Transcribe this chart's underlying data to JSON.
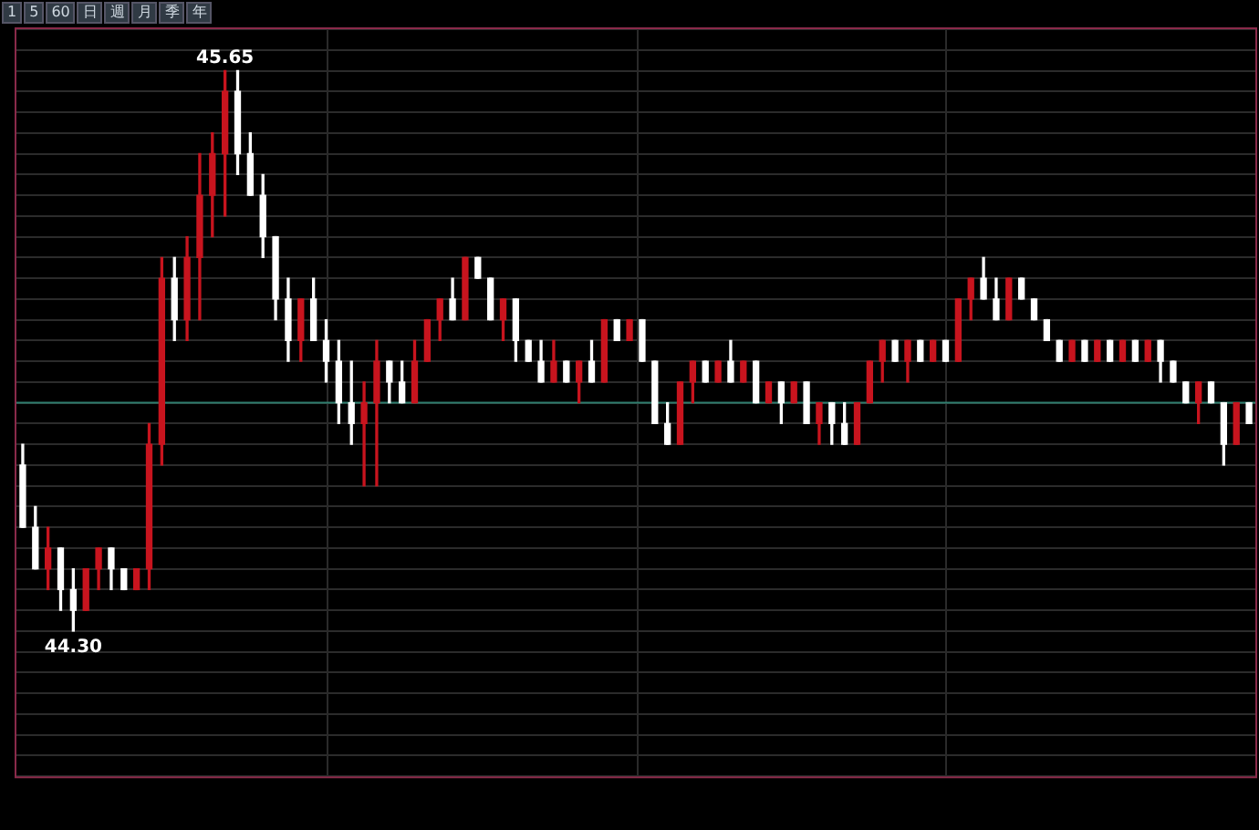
{
  "chart_data": {
    "type": "candlestick",
    "relative": false,
    "categories": [
      null,
      null,
      null,
      null,
      null,
      null,
      null,
      null,
      null,
      null,
      null,
      null,
      null,
      null,
      null,
      null,
      null,
      null,
      null,
      null,
      null,
      null,
      null,
      null,
      null,
      null,
      null,
      null,
      null,
      null,
      null,
      null,
      null,
      null,
      null,
      null,
      null,
      null,
      null,
      null,
      null,
      null,
      null,
      null,
      null,
      null,
      null,
      null,
      null,
      null,
      null,
      null,
      null,
      null,
      null,
      null,
      null,
      null,
      null,
      null,
      null,
      null,
      null,
      null,
      null,
      null,
      null,
      null,
      null,
      null,
      null,
      null,
      null,
      null,
      null,
      null,
      null,
      null,
      null,
      null,
      null,
      null,
      null,
      null,
      null,
      null,
      null,
      null,
      null,
      null,
      null,
      null,
      null,
      null,
      null,
      null,
      null,
      null
    ],
    "ohlc": [
      [
        44.7,
        44.75,
        44.55,
        44.55
      ],
      [
        44.55,
        44.6,
        44.45,
        44.45
      ],
      [
        44.45,
        44.55,
        44.4,
        44.5
      ],
      [
        44.5,
        44.5,
        44.35,
        44.4
      ],
      [
        44.4,
        44.45,
        44.3,
        44.35
      ],
      [
        44.35,
        44.45,
        44.35,
        44.45
      ],
      [
        44.45,
        44.5,
        44.4,
        44.5
      ],
      [
        44.5,
        44.5,
        44.4,
        44.45
      ],
      [
        44.45,
        44.45,
        44.4,
        44.4
      ],
      [
        44.4,
        44.45,
        44.4,
        44.45
      ],
      [
        44.45,
        44.8,
        44.4,
        44.75
      ],
      [
        44.75,
        45.2,
        44.7,
        45.15
      ],
      [
        45.15,
        45.2,
        45.0,
        45.05
      ],
      [
        45.05,
        45.25,
        45.0,
        45.2
      ],
      [
        45.2,
        45.45,
        45.05,
        45.35
      ],
      [
        45.35,
        45.5,
        45.25,
        45.45
      ],
      [
        45.45,
        45.65,
        45.3,
        45.6
      ],
      [
        45.6,
        45.65,
        45.4,
        45.45
      ],
      [
        45.45,
        45.5,
        45.35,
        45.35
      ],
      [
        45.35,
        45.4,
        45.2,
        45.25
      ],
      [
        45.25,
        45.25,
        45.05,
        45.1
      ],
      [
        45.1,
        45.15,
        44.95,
        45.0
      ],
      [
        45.0,
        45.1,
        44.95,
        45.1
      ],
      [
        45.1,
        45.15,
        45.0,
        45.0
      ],
      [
        45.0,
        45.05,
        44.9,
        44.95
      ],
      [
        44.95,
        45.0,
        44.8,
        44.85
      ],
      [
        44.85,
        44.95,
        44.75,
        44.8
      ],
      [
        44.8,
        44.9,
        44.65,
        44.85
      ],
      [
        44.85,
        45.0,
        44.65,
        44.95
      ],
      [
        44.95,
        44.95,
        44.85,
        44.9
      ],
      [
        44.9,
        44.95,
        44.85,
        44.85
      ],
      [
        44.85,
        45.0,
        44.85,
        44.95
      ],
      [
        44.95,
        45.05,
        44.95,
        45.05
      ],
      [
        45.05,
        45.1,
        45.0,
        45.1
      ],
      [
        45.1,
        45.15,
        45.05,
        45.05
      ],
      [
        45.05,
        45.2,
        45.05,
        45.2
      ],
      [
        45.2,
        45.2,
        45.15,
        45.15
      ],
      [
        45.15,
        45.15,
        45.05,
        45.05
      ],
      [
        45.05,
        45.1,
        45.0,
        45.1
      ],
      [
        45.1,
        45.1,
        44.95,
        45.0
      ],
      [
        45.0,
        45.0,
        44.95,
        44.95
      ],
      [
        44.95,
        45.0,
        44.9,
        44.9
      ],
      [
        44.9,
        45.0,
        44.9,
        44.95
      ],
      [
        44.95,
        44.95,
        44.9,
        44.9
      ],
      [
        44.9,
        44.95,
        44.85,
        44.95
      ],
      [
        44.95,
        45.0,
        44.9,
        44.9
      ],
      [
        44.9,
        45.05,
        44.9,
        45.05
      ],
      [
        45.05,
        45.05,
        45.0,
        45.0
      ],
      [
        45.0,
        45.05,
        45.0,
        45.05
      ],
      [
        45.05,
        45.05,
        44.95,
        44.95
      ],
      [
        44.95,
        44.95,
        44.8,
        44.8
      ],
      [
        44.8,
        44.85,
        44.75,
        44.75
      ],
      [
        44.75,
        44.9,
        44.75,
        44.9
      ],
      [
        44.9,
        44.95,
        44.85,
        44.95
      ],
      [
        44.95,
        44.95,
        44.9,
        44.9
      ],
      [
        44.9,
        44.95,
        44.9,
        44.95
      ],
      [
        44.95,
        45.0,
        44.9,
        44.9
      ],
      [
        44.9,
        44.95,
        44.9,
        44.95
      ],
      [
        44.95,
        44.95,
        44.85,
        44.85
      ],
      [
        44.85,
        44.9,
        44.85,
        44.9
      ],
      [
        44.9,
        44.9,
        44.8,
        44.85
      ],
      [
        44.85,
        44.9,
        44.85,
        44.9
      ],
      [
        44.9,
        44.9,
        44.8,
        44.8
      ],
      [
        44.8,
        44.85,
        44.75,
        44.85
      ],
      [
        44.85,
        44.85,
        44.75,
        44.8
      ],
      [
        44.8,
        44.85,
        44.75,
        44.75
      ],
      [
        44.75,
        44.85,
        44.75,
        44.85
      ],
      [
        44.85,
        44.95,
        44.85,
        44.95
      ],
      [
        44.95,
        45.0,
        44.9,
        45.0
      ],
      [
        45.0,
        45.0,
        44.95,
        44.95
      ],
      [
        44.95,
        45.0,
        44.9,
        45.0
      ],
      [
        45.0,
        45.0,
        44.95,
        44.95
      ],
      [
        44.95,
        45.0,
        44.95,
        45.0
      ],
      [
        45.0,
        45.0,
        44.95,
        44.95
      ],
      [
        44.95,
        45.1,
        44.95,
        45.1
      ],
      [
        45.1,
        45.15,
        45.05,
        45.15
      ],
      [
        45.15,
        45.2,
        45.1,
        45.1
      ],
      [
        45.1,
        45.15,
        45.05,
        45.05
      ],
      [
        45.05,
        45.15,
        45.05,
        45.15
      ],
      [
        45.15,
        45.15,
        45.1,
        45.1
      ],
      [
        45.1,
        45.1,
        45.05,
        45.05
      ],
      [
        45.05,
        45.05,
        45.0,
        45.0
      ],
      [
        45.0,
        45.0,
        44.95,
        44.95
      ],
      [
        44.95,
        45.0,
        44.95,
        45.0
      ],
      [
        45.0,
        45.0,
        44.95,
        44.95
      ],
      [
        44.95,
        45.0,
        44.95,
        45.0
      ],
      [
        45.0,
        45.0,
        44.95,
        44.95
      ],
      [
        44.95,
        45.0,
        44.95,
        45.0
      ],
      [
        45.0,
        45.0,
        44.95,
        44.95
      ],
      [
        44.95,
        45.0,
        44.95,
        45.0
      ],
      [
        45.0,
        45.0,
        44.9,
        44.95
      ],
      [
        44.95,
        44.95,
        44.9,
        44.9
      ],
      [
        44.9,
        44.9,
        44.85,
        44.85
      ],
      [
        44.85,
        44.9,
        44.8,
        44.9
      ],
      [
        44.9,
        44.9,
        44.85,
        44.85
      ],
      [
        44.85,
        44.85,
        44.7,
        44.75
      ],
      [
        44.75,
        44.85,
        44.75,
        44.85
      ],
      [
        44.85,
        44.85,
        44.8,
        44.8
      ]
    ],
    "colors": [
      "#ffffff",
      "#ffffff",
      "#c8141e",
      "#ffffff",
      "#ffffff",
      "#c8141e",
      "#c8141e",
      "#ffffff",
      "#ffffff",
      "#c8141e",
      "#c8141e",
      "#c8141e",
      "#ffffff",
      "#c8141e",
      "#c8141e",
      "#c8141e",
      "#c8141e",
      "#ffffff",
      "#ffffff",
      "#ffffff",
      "#ffffff",
      "#ffffff",
      "#c8141e",
      "#ffffff",
      "#ffffff",
      "#ffffff",
      "#ffffff",
      "#c8141e",
      "#c8141e",
      "#ffffff",
      "#ffffff",
      "#c8141e",
      "#c8141e",
      "#c8141e",
      "#ffffff",
      "#c8141e",
      "#ffffff",
      "#ffffff",
      "#c8141e",
      "#ffffff",
      "#ffffff",
      "#ffffff",
      "#c8141e",
      "#ffffff",
      "#c8141e",
      "#ffffff",
      "#c8141e",
      "#ffffff",
      "#c8141e",
      "#ffffff",
      "#ffffff",
      "#ffffff",
      "#c8141e",
      "#c8141e",
      "#ffffff",
      "#c8141e",
      "#ffffff",
      "#c8141e",
      "#ffffff",
      "#c8141e",
      "#ffffff",
      "#c8141e",
      "#ffffff",
      "#c8141e",
      "#ffffff",
      "#ffffff",
      "#c8141e",
      "#c8141e",
      "#c8141e",
      "#ffffff",
      "#c8141e",
      "#ffffff",
      "#c8141e",
      "#ffffff",
      "#c8141e",
      "#c8141e",
      "#ffffff",
      "#ffffff",
      "#c8141e",
      "#ffffff",
      "#ffffff",
      "#ffffff",
      "#ffffff",
      "#c8141e",
      "#ffffff",
      "#c8141e",
      "#ffffff",
      "#c8141e",
      "#ffffff",
      "#c8141e",
      "#ffffff",
      "#ffffff",
      "#ffffff",
      "#c8141e",
      "#ffffff",
      "#ffffff",
      "#c8141e",
      "#ffffff"
    ],
    "ylim": [
      43.95,
      45.75
    ],
    "yticks": [
      {
        "value": 43.95,
        "label": null
      },
      {
        "value": 44.0,
        "label": null
      },
      {
        "value": 44.05,
        "label": null
      },
      {
        "value": 44.1,
        "label": null
      },
      {
        "value": 44.15,
        "label": null
      },
      {
        "value": 44.2,
        "label": null
      },
      {
        "value": 44.25,
        "label": null
      },
      {
        "value": 44.3,
        "label": null
      },
      {
        "value": 44.35,
        "label": null
      },
      {
        "value": 44.4,
        "label": null
      },
      {
        "value": 44.45,
        "label": null
      },
      {
        "value": 44.5,
        "label": null
      },
      {
        "value": 44.55,
        "label": null
      },
      {
        "value": 44.6,
        "label": null
      },
      {
        "value": 44.65,
        "label": null
      },
      {
        "value": 44.7,
        "label": null
      },
      {
        "value": 44.75,
        "label": null
      },
      {
        "value": 44.8,
        "label": null
      },
      {
        "value": 44.85,
        "label": null
      },
      {
        "value": 44.9,
        "label": null
      },
      {
        "value": 44.95,
        "label": null
      },
      {
        "value": 45.0,
        "label": null
      },
      {
        "value": 45.05,
        "label": null
      },
      {
        "value": 45.1,
        "label": null
      },
      {
        "value": 45.15,
        "label": null
      },
      {
        "value": 45.2,
        "label": null
      },
      {
        "value": 45.25,
        "label": null
      },
      {
        "value": 45.3,
        "label": null
      },
      {
        "value": 45.35,
        "label": null
      },
      {
        "value": 45.4,
        "label": null
      },
      {
        "value": 45.45,
        "label": null
      },
      {
        "value": 45.5,
        "label": null
      },
      {
        "value": 45.55,
        "label": null
      },
      {
        "value": 45.6,
        "label": null
      },
      {
        "value": 45.65,
        "label": null
      },
      {
        "value": 45.7,
        "label": null
      },
      {
        "value": 45.75,
        "label": null
      }
    ],
    "grid": "y",
    "legend": false,
    "ref_lines": [
      {
        "axis": "y",
        "value": 44.85,
        "color": "#2f7f6f"
      }
    ],
    "annotations": [
      {
        "text": "45.65",
        "y": 45.65
      },
      {
        "text": "44.30",
        "y": 44.3
      },
      "1",
      "5",
      "60",
      "日",
      "週",
      "月",
      "季",
      "年"
    ]
  }
}
